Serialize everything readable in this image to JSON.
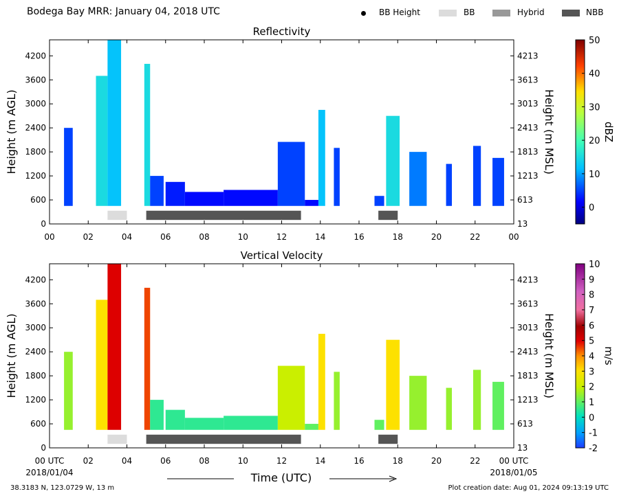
{
  "header": {
    "title": "Bodega Bay MRR:  January 04, 2018 UTC",
    "legend": [
      {
        "label": "BB Height",
        "kind": "dot",
        "color": "#000000"
      },
      {
        "label": "BB",
        "kind": "swatch",
        "color": "#dcdcdc"
      },
      {
        "label": "Hybrid",
        "kind": "swatch",
        "color": "#999999"
      },
      {
        "label": "NBB",
        "kind": "swatch",
        "color": "#555555"
      }
    ]
  },
  "footer": {
    "location": "38.3183 N, 123.0729 W, 13 m",
    "creation": "Plot creation date: Aug 01, 2024 09:13:19 UTC",
    "xlabel": "Time (UTC)",
    "start_date": "2018/01/04",
    "end_date": "2018/01/05"
  },
  "chart_data": [
    {
      "type": "heatmap",
      "title": "Reflectivity",
      "ylabel_left": "Height (m AGL)",
      "ylabel_right": "Height (m MSL)",
      "xlim": [
        0,
        24
      ],
      "ylim": [
        0,
        4600
      ],
      "x_ticks": [
        "00",
        "02",
        "04",
        "06",
        "08",
        "10",
        "12",
        "14",
        "16",
        "18",
        "20",
        "22",
        "00"
      ],
      "y_ticks_left": [
        0,
        600,
        1200,
        1800,
        2400,
        3000,
        3600,
        4200
      ],
      "y_ticks_right": [
        13,
        613,
        1213,
        1813,
        2413,
        3013,
        3613,
        4213
      ],
      "colorbar": {
        "label": "dBZ",
        "min": -5,
        "max": 50,
        "ticks": [
          0,
          10,
          20,
          30,
          40,
          50
        ]
      },
      "precip_type_bars": [
        {
          "type": "BB",
          "start": 3.0,
          "end": 4.0
        },
        {
          "type": "NBB",
          "start": 5.0,
          "end": 13.0
        },
        {
          "type": "NBB",
          "start": 17.0,
          "end": 18.0
        }
      ],
      "echo_columns": [
        {
          "start": 0.75,
          "end": 1.2,
          "top": 2400,
          "value": 5
        },
        {
          "start": 2.4,
          "end": 3.0,
          "top": 3700,
          "value": 15
        },
        {
          "start": 3.0,
          "end": 3.7,
          "top": 4600,
          "value": 12
        },
        {
          "start": 4.9,
          "end": 5.2,
          "top": 4000,
          "value": 15
        },
        {
          "start": 5.2,
          "end": 5.9,
          "top": 1200,
          "value": 5
        },
        {
          "start": 6.0,
          "end": 7.0,
          "top": 1050,
          "value": 3
        },
        {
          "start": 7.0,
          "end": 9.0,
          "top": 800,
          "value": 2
        },
        {
          "start": 9.0,
          "end": 11.8,
          "top": 850,
          "value": 2
        },
        {
          "start": 11.8,
          "end": 13.2,
          "top": 2050,
          "value": 5
        },
        {
          "start": 13.2,
          "end": 13.9,
          "top": 600,
          "value": 2
        },
        {
          "start": 13.9,
          "end": 14.25,
          "top": 2850,
          "value": 12
        },
        {
          "start": 14.7,
          "end": 15.0,
          "top": 1900,
          "value": 5
        },
        {
          "start": 16.8,
          "end": 17.3,
          "top": 700,
          "value": 5
        },
        {
          "start": 17.4,
          "end": 18.1,
          "top": 2700,
          "value": 15
        },
        {
          "start": 18.6,
          "end": 19.5,
          "top": 1800,
          "value": 8
        },
        {
          "start": 20.5,
          "end": 20.8,
          "top": 1500,
          "value": 5
        },
        {
          "start": 21.9,
          "end": 22.3,
          "top": 1950,
          "value": 5
        },
        {
          "start": 22.9,
          "end": 23.5,
          "top": 1650,
          "value": 5
        }
      ]
    },
    {
      "type": "heatmap",
      "title": "Vertical Velocity",
      "ylabel_left": "Height (m AGL)",
      "ylabel_right": "Height (m MSL)",
      "xlim": [
        0,
        24
      ],
      "ylim": [
        0,
        4600
      ],
      "x_ticks": [
        "00 UTC",
        "02",
        "04",
        "06",
        "08",
        "10",
        "12",
        "14",
        "16",
        "18",
        "20",
        "22",
        "00 UTC"
      ],
      "y_ticks_left": [
        0,
        600,
        1200,
        1800,
        2400,
        3000,
        3600,
        4200
      ],
      "y_ticks_right": [
        13,
        613,
        1213,
        1813,
        2413,
        3013,
        3613,
        4213
      ],
      "colorbar": {
        "label": "m/s",
        "min": -2,
        "max": 10,
        "ticks": [
          -2,
          -1,
          0,
          1,
          2,
          3,
          4,
          5,
          6,
          7,
          8,
          9,
          10
        ]
      },
      "precip_type_bars": [
        {
          "type": "BB",
          "start": 3.0,
          "end": 4.0
        },
        {
          "type": "NBB",
          "start": 5.0,
          "end": 13.0
        },
        {
          "type": "NBB",
          "start": 17.0,
          "end": 18.0
        }
      ],
      "echo_columns": [
        {
          "start": 0.75,
          "end": 1.2,
          "top": 2400,
          "value": 1.5
        },
        {
          "start": 2.4,
          "end": 3.0,
          "top": 3700,
          "value": 3
        },
        {
          "start": 3.0,
          "end": 3.7,
          "top": 4600,
          "value": 5
        },
        {
          "start": 4.9,
          "end": 5.2,
          "top": 4000,
          "value": 4.5
        },
        {
          "start": 5.2,
          "end": 5.9,
          "top": 1200,
          "value": 0.5
        },
        {
          "start": 6.0,
          "end": 7.0,
          "top": 950,
          "value": 0.5
        },
        {
          "start": 7.0,
          "end": 9.0,
          "top": 750,
          "value": 0.5
        },
        {
          "start": 9.0,
          "end": 11.8,
          "top": 800,
          "value": 0.5
        },
        {
          "start": 11.8,
          "end": 13.2,
          "top": 2050,
          "value": 2
        },
        {
          "start": 13.2,
          "end": 13.9,
          "top": 600,
          "value": 1
        },
        {
          "start": 13.9,
          "end": 14.25,
          "top": 2850,
          "value": 3
        },
        {
          "start": 14.7,
          "end": 15.0,
          "top": 1900,
          "value": 1.5
        },
        {
          "start": 16.8,
          "end": 17.3,
          "top": 700,
          "value": 1
        },
        {
          "start": 17.4,
          "end": 18.1,
          "top": 2700,
          "value": 3
        },
        {
          "start": 18.6,
          "end": 19.5,
          "top": 1800,
          "value": 1.5
        },
        {
          "start": 20.5,
          "end": 20.8,
          "top": 1500,
          "value": 1.5
        },
        {
          "start": 21.9,
          "end": 22.3,
          "top": 1950,
          "value": 1.5
        },
        {
          "start": 22.9,
          "end": 23.5,
          "top": 1650,
          "value": 1
        }
      ]
    }
  ],
  "colors": {
    "BB": "#dcdcdc",
    "Hybrid": "#999999",
    "NBB": "#555555"
  }
}
